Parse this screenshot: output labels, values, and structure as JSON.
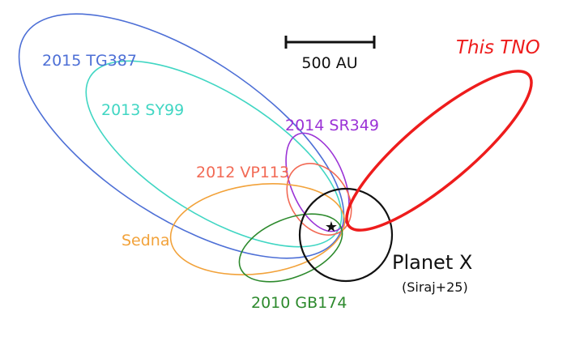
{
  "scale_bar": {
    "label": "500 AU"
  },
  "objects": {
    "tg387": {
      "label": "2015 TG387",
      "color": "#4d6fd6"
    },
    "sy99": {
      "label": "2013 SY99",
      "color": "#40d6c3"
    },
    "sr349": {
      "label": "2014 SR349",
      "color": "#9b33d6"
    },
    "vp113": {
      "label": "2012 VP113",
      "color": "#f26a55"
    },
    "sedna": {
      "label": "Sedna",
      "color": "#f2a23a"
    },
    "gb174": {
      "label": "2010 GB174",
      "color": "#2d8a2d"
    },
    "tno": {
      "label": "This TNO",
      "color": "#ee1c1c"
    },
    "planet_x": {
      "label": "Planet X",
      "citation": "(Siraj+25)",
      "color": "#111111"
    }
  },
  "sun_icon": "star-icon"
}
